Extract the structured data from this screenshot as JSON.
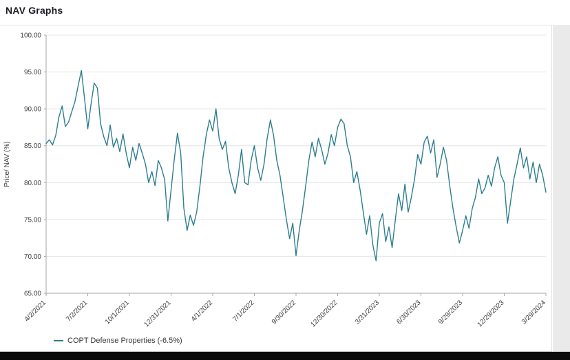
{
  "page": {
    "title": "NAV Graphs"
  },
  "colors": {
    "line": "#2b7d8f",
    "grid": "#e4e4e4",
    "axis": "#a6a6a6",
    "tick_text": "#3c3d42",
    "title_text": "#1b1c22",
    "card_border": "#e1e1e1",
    "side_strip": "#eaeaea",
    "bottom_bar": "#0b0b0b"
  },
  "legend": {
    "items": [
      {
        "label": "COPT Defense Properties (-6.5%)",
        "color": "#2b7d8f"
      }
    ]
  },
  "chart_data": {
    "type": "line",
    "title": "NAV Graphs",
    "xlabel": "",
    "ylabel": "Price/ NAV (%)",
    "ylim": [
      65,
      100
    ],
    "ytick_values": [
      65,
      70,
      75,
      80,
      85,
      90,
      95,
      100
    ],
    "ytick_labels": [
      "65.00",
      "70.00",
      "75.00",
      "80.00",
      "85.00",
      "90.00",
      "95.00",
      "100.00"
    ],
    "x_tick_labels": [
      "4/2/2021",
      "7/2/2021",
      "10/1/2021",
      "12/31/2021",
      "4/1/2022",
      "7/1/2022",
      "9/30/2022",
      "12/30/2022",
      "3/31/2023",
      "6/30/2023",
      "9/29/2023",
      "12/29/2023",
      "3/29/2024"
    ],
    "x_tick_weeks": [
      0,
      13,
      26,
      39,
      52,
      65,
      78,
      91,
      104,
      117,
      130,
      143,
      156
    ],
    "x_range_weeks": [
      0,
      156
    ],
    "grid": "horizontal",
    "legend_position": "bottom-left",
    "series": [
      {
        "name": "COPT Defense Properties (-6.5%)",
        "color": "#2b7d8f",
        "x_unit": "weeks_from_4/2/2021",
        "values": [
          85.3,
          85.8,
          85.1,
          86.4,
          88.9,
          90.4,
          87.6,
          88.2,
          89.6,
          91.0,
          93.1,
          95.2,
          91.4,
          87.3,
          90.6,
          93.5,
          92.8,
          88.0,
          86.2,
          85.0,
          87.8,
          84.8,
          86.0,
          84.2,
          86.6,
          84.0,
          82.0,
          84.8,
          83.0,
          85.3,
          84.0,
          82.5,
          80.0,
          81.5,
          79.6,
          83.0,
          82.0,
          80.4,
          74.8,
          79.0,
          83.2,
          86.7,
          84.0,
          76.5,
          73.5,
          75.6,
          74.2,
          76.0,
          79.5,
          83.5,
          86.5,
          88.5,
          87.0,
          90.0,
          86.0,
          84.5,
          85.6,
          82.0,
          80.0,
          78.5,
          81.0,
          84.5,
          80.0,
          79.7,
          83.0,
          85.0,
          82.0,
          80.3,
          82.5,
          86.0,
          88.5,
          86.4,
          83.0,
          81.0,
          78.0,
          75.0,
          72.4,
          74.5,
          70.1,
          73.5,
          76.2,
          79.5,
          83.0,
          85.5,
          83.5,
          86.0,
          84.5,
          82.5,
          84.0,
          86.5,
          85.0,
          87.5,
          88.6,
          88.0,
          85.0,
          83.5,
          80.0,
          81.5,
          79.0,
          76.0,
          73.0,
          75.5,
          71.5,
          69.4,
          74.5,
          75.8,
          72.0,
          74.0,
          71.2,
          75.0,
          78.5,
          76.2,
          79.8,
          76.0,
          78.0,
          80.5,
          83.8,
          82.5,
          85.5,
          86.3,
          84.0,
          85.8,
          80.7,
          82.5,
          84.8,
          83.0,
          79.5,
          76.5,
          74.0,
          71.8,
          73.5,
          75.5,
          73.8,
          76.5,
          78.0,
          80.5,
          78.5,
          79.3,
          81.0,
          79.5,
          82.0,
          83.5,
          81.0,
          80.0,
          74.5,
          77.5,
          80.5,
          82.5,
          84.7,
          82.0,
          83.5,
          80.5,
          82.8,
          80.0,
          82.5,
          81.0,
          78.7
        ]
      }
    ]
  }
}
